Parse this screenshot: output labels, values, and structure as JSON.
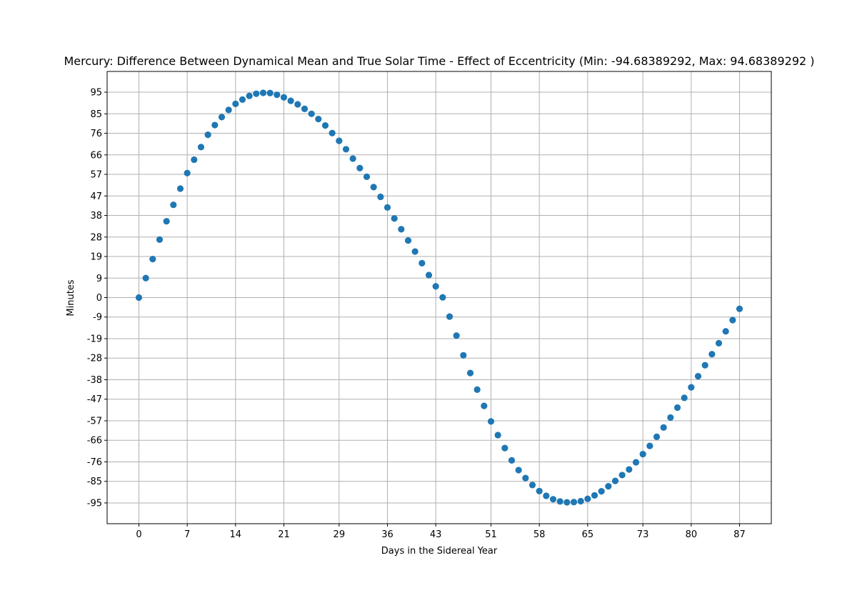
{
  "chart_data": {
    "type": "scatter",
    "title": "Mercury: Difference Between Dynamical Mean and True Solar Time - Effect of Eccentricity (Min: -94.68389292, Max: 94.68389292 )",
    "xlabel": "Days in the Sidereal Year",
    "ylabel": "Minutes",
    "xlim": [
      -4.6,
      91.6
    ],
    "ylim": [
      -104.6,
      104.6
    ],
    "xticks": [
      0,
      7,
      14,
      21,
      29,
      36,
      43,
      51,
      58,
      65,
      73,
      80,
      87
    ],
    "yticks": [
      95,
      85,
      76,
      66,
      57,
      47,
      38,
      28,
      19,
      9,
      0,
      -9,
      -19,
      -28,
      -38,
      -47,
      -57,
      -66,
      -76,
      -85,
      -95
    ],
    "grid": true,
    "marker_color": "#1f77b4",
    "series": [
      {
        "x": [
          0,
          1,
          2,
          3,
          4,
          5,
          6,
          7,
          8,
          9,
          10,
          11,
          12,
          13,
          14,
          15,
          16,
          17,
          18,
          19,
          20,
          21,
          22,
          23,
          24,
          25,
          26,
          27,
          28,
          29,
          30,
          31,
          32,
          33,
          34,
          35,
          36,
          37,
          38,
          39,
          40,
          41,
          42,
          43,
          44,
          45,
          46,
          47,
          48,
          49,
          50,
          51,
          52,
          53,
          54,
          55,
          56,
          57,
          58,
          59,
          60,
          61,
          62,
          63,
          64,
          65,
          66,
          67,
          68,
          69,
          70,
          71,
          72,
          73,
          74,
          75,
          76,
          77,
          78,
          79,
          80,
          81,
          82,
          83,
          84,
          85,
          86,
          87
        ],
        "y": [
          0.0,
          9.0,
          17.8,
          26.8,
          35.3,
          42.9,
          50.4,
          57.6,
          63.8,
          69.6,
          75.3,
          79.8,
          83.5,
          86.8,
          89.6,
          91.6,
          93.3,
          94.3,
          94.7,
          94.6,
          93.8,
          92.6,
          91.0,
          89.4,
          87.3,
          85.0,
          82.6,
          79.6,
          76.1,
          72.5,
          68.6,
          64.3,
          59.9,
          55.9,
          51.1,
          46.6,
          41.7,
          36.6,
          31.6,
          26.4,
          21.3,
          15.9,
          10.4,
          5.2,
          0.1,
          -8.8,
          -17.6,
          -26.7,
          -34.9,
          -42.6,
          -50.1,
          -57.3,
          -63.6,
          -69.6,
          -75.3,
          -79.8,
          -83.5,
          -86.7,
          -89.5,
          -91.7,
          -93.3,
          -94.3,
          -94.7,
          -94.6,
          -94.2,
          -93.1,
          -91.5,
          -89.6,
          -87.3,
          -84.8,
          -82.1,
          -79.5,
          -76.2,
          -72.4,
          -68.6,
          -64.4,
          -60.1,
          -55.5,
          -50.9,
          -46.4,
          -41.5,
          -36.4,
          -31.3,
          -26.2,
          -21.1,
          -15.6,
          -10.4,
          -5.2
        ]
      }
    ]
  }
}
